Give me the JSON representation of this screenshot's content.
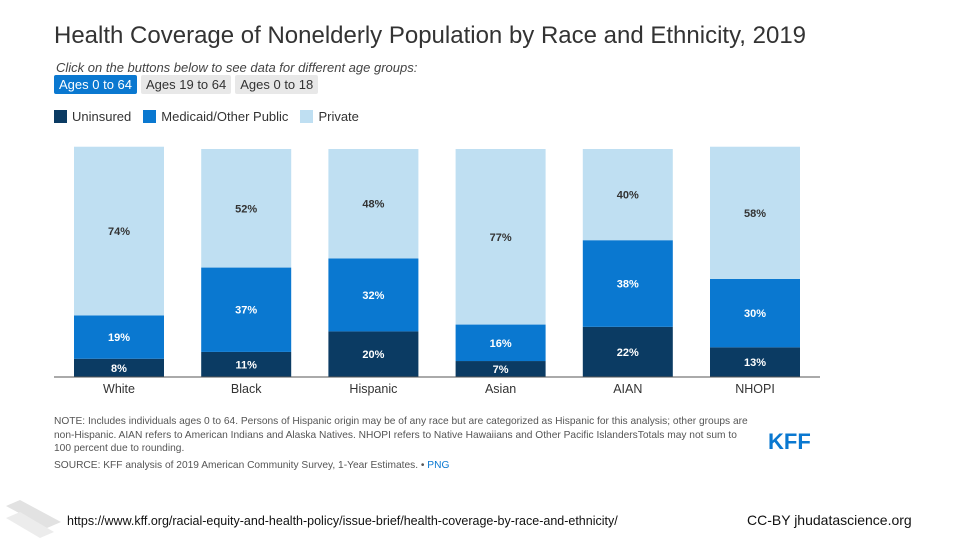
{
  "title": "Health Coverage of Nonelderly Population by Race and Ethnicity, 2019",
  "instruction": "Click on the buttons below to see data for different age groups:",
  "buttons": [
    "Ages 0 to 64",
    "Ages 19 to 64",
    "Ages 0 to 18"
  ],
  "active_button": 0,
  "colors": {
    "uninsured": "#0b3b63",
    "medicaid": "#0a78d0",
    "private": "#bfdff2",
    "active_button": "#0a78d0",
    "kff": "#0a78d0"
  },
  "chart_data": {
    "type": "bar",
    "stacked": true,
    "categories": [
      "White",
      "Black",
      "Hispanic",
      "Asian",
      "AIAN",
      "NHOPI"
    ],
    "series": [
      {
        "name": "Uninsured",
        "values": [
          8,
          11,
          20,
          7,
          22,
          13
        ],
        "labels": [
          "8%",
          "11%",
          "20%",
          "7%",
          "22%",
          "13%"
        ]
      },
      {
        "name": "Medicaid/Other Public",
        "values": [
          19,
          37,
          32,
          16,
          38,
          30
        ],
        "labels": [
          "19%",
          "37%",
          "32%",
          "16%",
          "38%",
          "30%"
        ]
      },
      {
        "name": "Private",
        "values": [
          74,
          52,
          48,
          77,
          40,
          58
        ],
        "labels": [
          "74%",
          "52%",
          "48%",
          "77%",
          "40%",
          "58%"
        ]
      }
    ],
    "ylim": [
      0,
      100
    ],
    "legend_position": "top-left",
    "grid": false
  },
  "note": {
    "text": "NOTE: Includes individuals ages 0 to 64. Persons of Hispanic origin may be of any race but are categorized as Hispanic for this analysis; other groups are non-Hispanic. AIAN refers to American Indians and Alaska Natives. NHOPI refers to Native Hawaiians and Other Pacific IslandersTotals may not sum to 100 percent due to rounding.",
    "source": "SOURCE: KFF analysis of 2019 American Community Survey, 1-Year Estimates. •",
    "png_label": "PNG"
  },
  "logo_text": "KFF",
  "footer": {
    "url": "https://www.kff.org/racial-equity-and-health-policy/issue-brief/health-coverage-by-race-and-ethnicity/",
    "credit": "CC-BY jhudatascience.org"
  }
}
